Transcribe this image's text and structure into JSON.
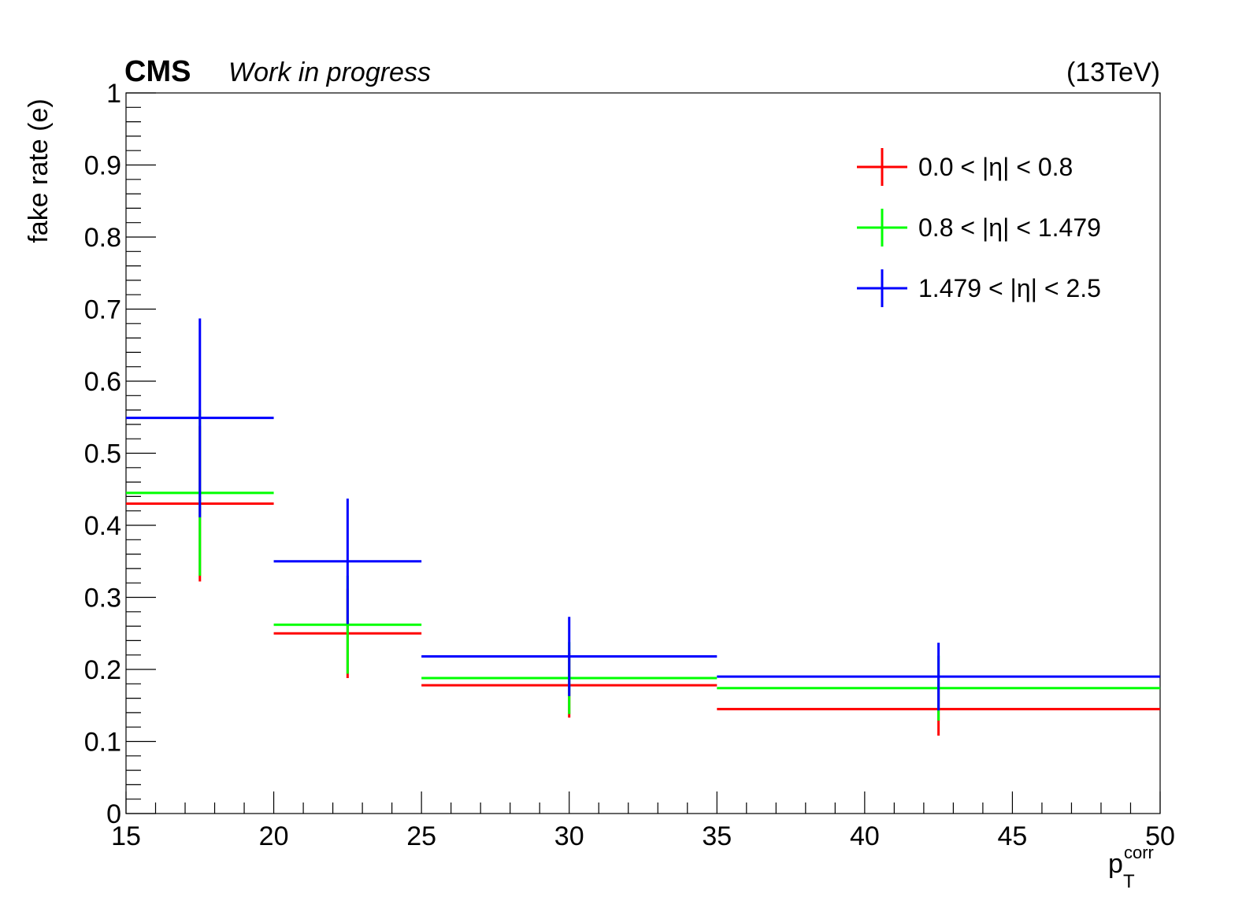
{
  "header": {
    "experiment": "CMS",
    "status": "Work in progress",
    "energy": "(13TeV)"
  },
  "chart_data": {
    "type": "scatter",
    "ylabel": "fake rate (e)",
    "xlabel_main": "p",
    "xlabel_sub": "T",
    "xlabel_sup": "corr",
    "xlim": [
      15,
      50
    ],
    "ylim": [
      0,
      1
    ],
    "x_ticks": [
      "15",
      "20",
      "25",
      "30",
      "35",
      "40",
      "45",
      "50"
    ],
    "y_ticks": [
      "0",
      "0.1",
      "0.2",
      "0.3",
      "0.4",
      "0.5",
      "0.6",
      "0.7",
      "0.8",
      "0.9",
      "1"
    ],
    "grid": false,
    "legend_position": "top-right",
    "bins": [
      [
        15,
        20
      ],
      [
        20,
        25
      ],
      [
        25,
        35
      ],
      [
        35,
        50
      ]
    ],
    "series": [
      {
        "name": "0.0 < |η| < 0.8",
        "color": "#ff0000",
        "values": [
          0.43,
          0.25,
          0.178,
          0.145
        ],
        "errors": [
          0.108,
          0.062,
          0.045,
          0.037
        ]
      },
      {
        "name": "0.8 < |η| < 1.479",
        "color": "#00ff00",
        "values": [
          0.445,
          0.262,
          0.188,
          0.174
        ],
        "errors": [
          0.115,
          0.068,
          0.05,
          0.045
        ]
      },
      {
        "name": "1.479 < |η| < 2.5",
        "color": "#0000ff",
        "values": [
          0.549,
          0.35,
          0.218,
          0.19
        ],
        "errors": [
          0.138,
          0.087,
          0.055,
          0.047
        ]
      }
    ]
  }
}
